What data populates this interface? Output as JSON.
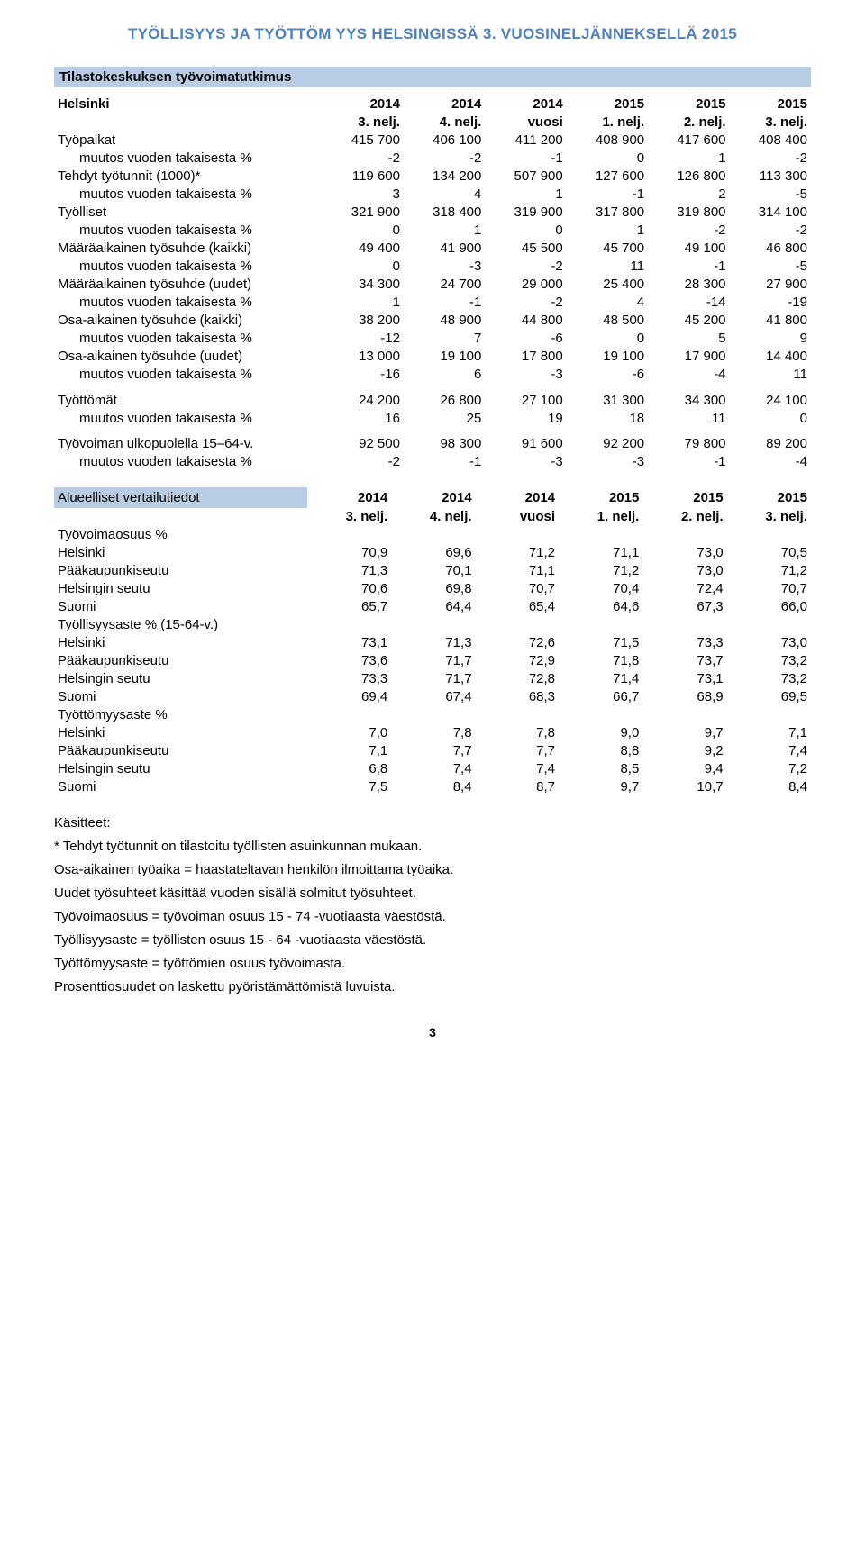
{
  "heading": "TYÖLLISYYS JA TYÖTTÖM YYS HELSINGISSÄ 3. VUOSINELJÄNNEKSELLÄ 2015",
  "section1_title": "Tilastokeskuksen työvoimatutkimus",
  "col_years": [
    "2014",
    "2014",
    "2014",
    "2015",
    "2015",
    "2015"
  ],
  "col_periods": [
    "3. nelj.",
    "4. nelj.",
    "vuosi",
    "1. nelj.",
    "2. nelj.",
    "3. nelj."
  ],
  "hdr_row_label": "Helsinki",
  "rows1": [
    {
      "label": "Työpaikat",
      "vals": [
        "415 700",
        "406 100",
        "411 200",
        "408 900",
        "417 600",
        "408 400"
      ],
      "bold": false,
      "indent": false
    },
    {
      "label": "muutos vuoden takaisesta %",
      "vals": [
        "-2",
        "-2",
        "-1",
        "0",
        "1",
        "-2"
      ],
      "bold": false,
      "indent": true
    },
    {
      "label": "Tehdyt työtunnit (1000)*",
      "vals": [
        "119 600",
        "134 200",
        "507 900",
        "127 600",
        "126 800",
        "113 300"
      ],
      "bold": false,
      "indent": false
    },
    {
      "label": "muutos vuoden takaisesta %",
      "vals": [
        "3",
        "4",
        "1",
        "-1",
        "2",
        "-5"
      ],
      "bold": false,
      "indent": true
    },
    {
      "label": "Työlliset",
      "vals": [
        "321 900",
        "318 400",
        "319 900",
        "317 800",
        "319 800",
        "314 100"
      ],
      "bold": false,
      "indent": false
    },
    {
      "label": "muutos vuoden takaisesta %",
      "vals": [
        "0",
        "1",
        "0",
        "1",
        "-2",
        "-2"
      ],
      "bold": false,
      "indent": true
    },
    {
      "label": "Määräaikainen työsuhde (kaikki)",
      "vals": [
        "49 400",
        "41 900",
        "45 500",
        "45 700",
        "49 100",
        "46 800"
      ],
      "bold": false,
      "indent": false
    },
    {
      "label": "muutos vuoden takaisesta %",
      "vals": [
        "0",
        "-3",
        "-2",
        "11",
        "-1",
        "-5"
      ],
      "bold": false,
      "indent": true
    },
    {
      "label": "Määräaikainen työsuhde (uudet)",
      "vals": [
        "34 300",
        "24 700",
        "29 000",
        "25 400",
        "28 300",
        "27 900"
      ],
      "bold": false,
      "indent": false
    },
    {
      "label": "muutos vuoden takaisesta %",
      "vals": [
        "1",
        "-1",
        "-2",
        "4",
        "-14",
        "-19"
      ],
      "bold": false,
      "indent": true
    },
    {
      "label": "Osa-aikainen työsuhde (kaikki)",
      "vals": [
        "38 200",
        "48 900",
        "44 800",
        "48 500",
        "45 200",
        "41 800"
      ],
      "bold": false,
      "indent": false
    },
    {
      "label": "muutos vuoden takaisesta %",
      "vals": [
        "-12",
        "7",
        "-6",
        "0",
        "5",
        "9"
      ],
      "bold": false,
      "indent": true
    },
    {
      "label": "Osa-aikainen työsuhde (uudet)",
      "vals": [
        "13 000",
        "19 100",
        "17 800",
        "19 100",
        "17 900",
        "14 400"
      ],
      "bold": false,
      "indent": false
    },
    {
      "label": "muutos vuoden takaisesta %",
      "vals": [
        "-16",
        "6",
        "-3",
        "-6",
        "-4",
        "11"
      ],
      "bold": false,
      "indent": true
    }
  ],
  "rows2": [
    {
      "label": "Työttömät",
      "vals": [
        "24 200",
        "26 800",
        "27 100",
        "31 300",
        "34 300",
        "24 100"
      ],
      "bold": false,
      "indent": false,
      "ypad": true
    },
    {
      "label": "muutos vuoden takaisesta %",
      "vals": [
        "16",
        "25",
        "19",
        "18",
        "11",
        "0"
      ],
      "bold": false,
      "indent": true
    }
  ],
  "rows3": [
    {
      "label": "Työvoiman ulkopuolella 15–64-v.",
      "vals": [
        "92 500",
        "98 300",
        "91 600",
        "92 200",
        "79 800",
        "89 200"
      ],
      "bold": false,
      "indent": false,
      "ypad": true
    },
    {
      "label": "muutos vuoden takaisesta %",
      "vals": [
        "-2",
        "-1",
        "-3",
        "-3",
        "-1",
        "-4"
      ],
      "bold": false,
      "indent": true
    }
  ],
  "regional_label": "Alueelliset vertailutiedot",
  "regional_groups": [
    {
      "title": "Työvoimaosuus %",
      "rows": [
        {
          "label": "Helsinki",
          "vals": [
            "70,9",
            "69,6",
            "71,2",
            "71,1",
            "73,0",
            "70,5"
          ]
        },
        {
          "label": "Pääkaupunkiseutu",
          "vals": [
            "71,3",
            "70,1",
            "71,1",
            "71,2",
            "73,0",
            "71,2"
          ]
        },
        {
          "label": "Helsingin seutu",
          "vals": [
            "70,6",
            "69,8",
            "70,7",
            "70,4",
            "72,4",
            "70,7"
          ]
        },
        {
          "label": "Suomi",
          "vals": [
            "65,7",
            "64,4",
            "65,4",
            "64,6",
            "67,3",
            "66,0"
          ]
        }
      ]
    },
    {
      "title": "Työllisyysaste % (15-64-v.)",
      "rows": [
        {
          "label": "Helsinki",
          "vals": [
            "73,1",
            "71,3",
            "72,6",
            "71,5",
            "73,3",
            "73,0"
          ]
        },
        {
          "label": "Pääkaupunkiseutu",
          "vals": [
            "73,6",
            "71,7",
            "72,9",
            "71,8",
            "73,7",
            "73,2"
          ]
        },
        {
          "label": "Helsingin seutu",
          "vals": [
            "73,3",
            "71,7",
            "72,8",
            "71,4",
            "73,1",
            "73,2"
          ]
        },
        {
          "label": "Suomi",
          "vals": [
            "69,4",
            "67,4",
            "68,3",
            "66,7",
            "68,9",
            "69,5"
          ]
        }
      ]
    },
    {
      "title": "Työttömyysaste %",
      "rows": [
        {
          "label": "Helsinki",
          "vals": [
            "7,0",
            "7,8",
            "7,8",
            "9,0",
            "9,7",
            "7,1"
          ]
        },
        {
          "label": "Pääkaupunkiseutu",
          "vals": [
            "7,1",
            "7,7",
            "7,7",
            "8,8",
            "9,2",
            "7,4"
          ]
        },
        {
          "label": "Helsingin seutu",
          "vals": [
            "6,8",
            "7,4",
            "7,4",
            "8,5",
            "9,4",
            "7,2"
          ]
        },
        {
          "label": "Suomi",
          "vals": [
            "7,5",
            "8,4",
            "8,7",
            "9,7",
            "10,7",
            "8,4"
          ]
        }
      ]
    }
  ],
  "footnotes_title": "Käsitteet:",
  "footnotes": [
    "* Tehdyt työtunnit on tilastoitu työllisten asuinkunnan mukaan.",
    "Osa-aikainen työaika = haastateltavan henkilön ilmoittama työaika.",
    "Uudet työsuhteet käsittää vuoden sisällä solmitut työsuhteet.",
    "Työvoimaosuus = työvoiman osuus 15 - 74 -vuotiaasta väestöstä.",
    "Työllisyysaste = työllisten osuus 15 - 64 -vuotiaasta väestöstä.",
    "Työttömyysaste = työttömien osuus työvoimasta.",
    "Prosenttiosuudet on laskettu pyöristämättömistä luvuista."
  ],
  "page_number": "3"
}
